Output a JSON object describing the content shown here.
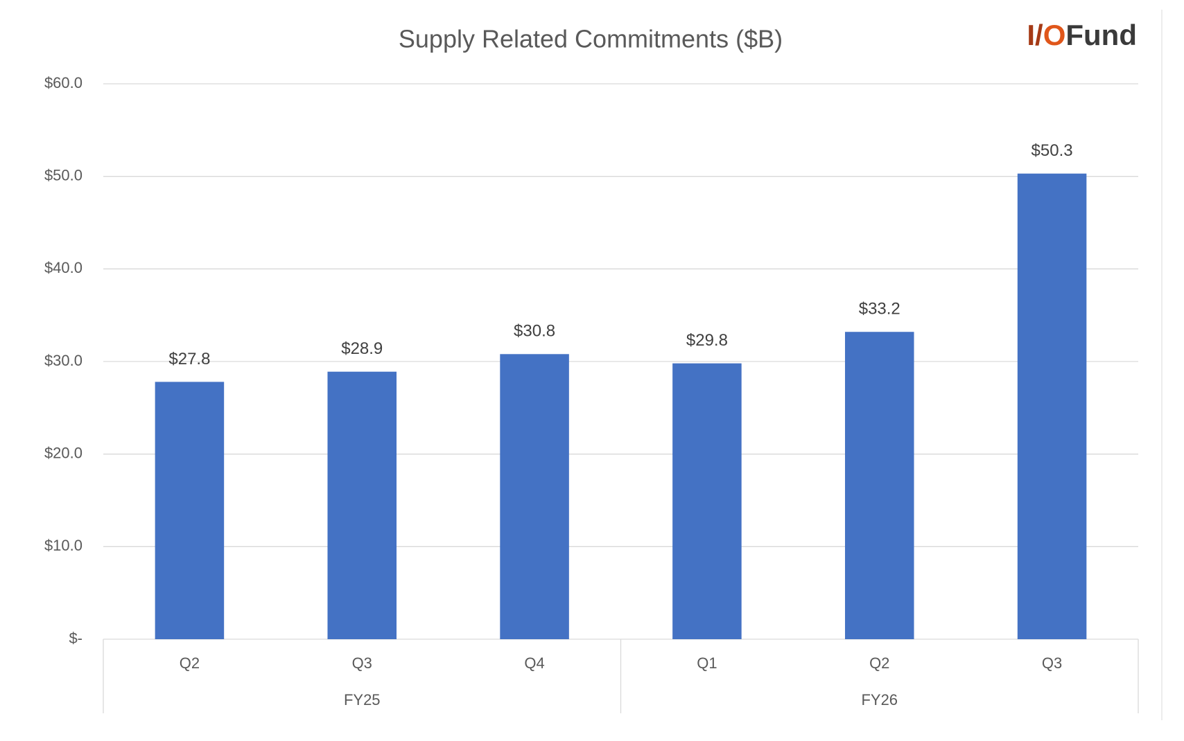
{
  "chart_data": {
    "type": "bar",
    "title": "Supply Related Commitments ($B)",
    "logo": [
      "I/",
      "O",
      "Fund"
    ],
    "groups": [
      {
        "name": "FY25",
        "categories": [
          "Q2",
          "Q3",
          "Q4"
        ],
        "values": [
          27.8,
          28.9,
          30.8
        ],
        "value_labels": [
          "$27.8",
          "$28.9",
          "$30.8"
        ]
      },
      {
        "name": "FY26",
        "categories": [
          "Q1",
          "Q2",
          "Q3"
        ],
        "values": [
          29.8,
          33.2,
          50.3
        ],
        "value_labels": [
          "$29.8",
          "$33.2",
          "$50.3"
        ]
      }
    ],
    "color": "#4472c4",
    "ylim": [
      0,
      60
    ],
    "yticks": [
      {
        "value": 0,
        "label": "$-"
      },
      {
        "value": 10,
        "label": "$10.0"
      },
      {
        "value": 20,
        "label": "$20.0"
      },
      {
        "value": 30,
        "label": "$30.0"
      },
      {
        "value": 40,
        "label": "$40.0"
      },
      {
        "value": 50,
        "label": "$50.0"
      },
      {
        "value": 60,
        "label": "$60.0"
      }
    ],
    "grid": true
  }
}
